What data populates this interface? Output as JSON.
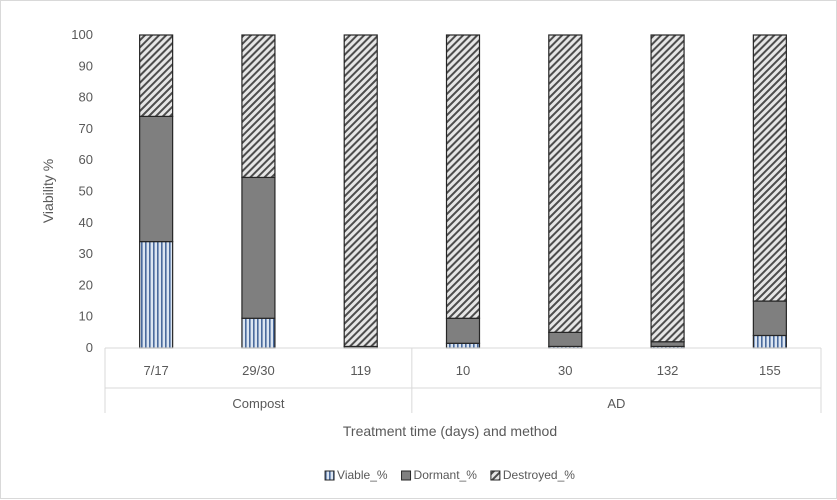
{
  "chart_data": {
    "type": "bar",
    "stacked": true,
    "categories": [
      "7/17",
      "29/30",
      "119",
      "10",
      "30",
      "132",
      "155"
    ],
    "groups": [
      {
        "label": "Compost",
        "categories": [
          "7/17",
          "29/30",
          "119"
        ]
      },
      {
        "label": "AD",
        "categories": [
          "10",
          "30",
          "132",
          "155"
        ]
      }
    ],
    "series": [
      {
        "name": "Viable_%",
        "values": [
          34,
          9.5,
          0,
          1.5,
          0.5,
          0.5,
          4
        ],
        "pattern": "vertical-stripes",
        "color": "#8ea9db"
      },
      {
        "name": "Dormant_%",
        "values": [
          40,
          45,
          0.5,
          8,
          4.5,
          1.5,
          11
        ],
        "pattern": "solid",
        "color": "#7f7f7f"
      },
      {
        "name": "Destroyed_%",
        "values": [
          26,
          45.5,
          99.5,
          90.5,
          95,
          98,
          85
        ],
        "pattern": "diagonal-hatch",
        "color": "#404040"
      }
    ],
    "xlabel": "Treatment time (days) and method",
    "ylabel": "Viability %",
    "ylim": [
      0,
      100
    ],
    "yticks": [
      0,
      10,
      20,
      30,
      40,
      50,
      60,
      70,
      80,
      90,
      100
    ],
    "grid": false,
    "legend": "bottom"
  }
}
